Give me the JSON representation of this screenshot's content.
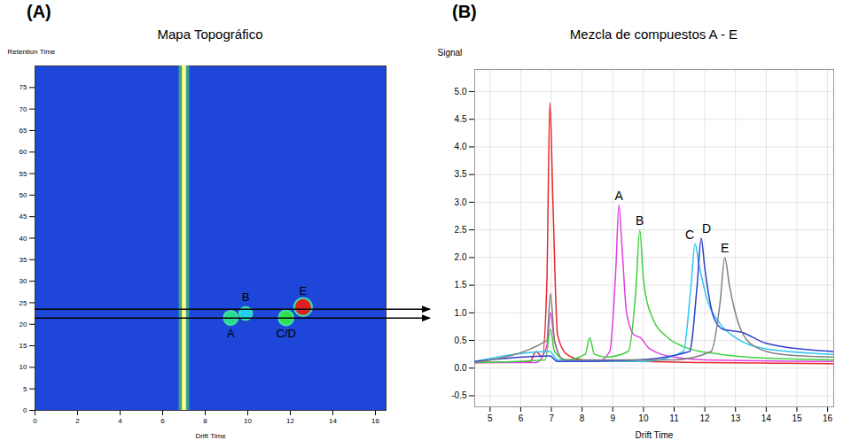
{
  "chart_data": [
    {
      "panel": "(A)",
      "type": "heatmap",
      "title": "Mapa Topográfico",
      "xlabel": "Drift Time",
      "ylabel": "Retention Time",
      "xlim": [
        0,
        16.5
      ],
      "xticks": [
        0,
        2,
        4,
        6,
        8,
        10,
        12,
        14,
        16
      ],
      "ylim": [
        0,
        80
      ],
      "yticks": [
        0,
        5,
        10,
        15,
        20,
        25,
        30,
        35,
        40,
        45,
        50,
        55,
        60,
        65,
        70,
        75
      ],
      "intensity_range": [
        0,
        1
      ],
      "reactant_ion_peak": {
        "x": 7,
        "intensity": 0.8
      },
      "spots": {
        "labels": [
          "A",
          "B",
          "C/D",
          "E"
        ],
        "x": [
          9.2,
          9.9,
          11.8,
          12.6
        ],
        "y": [
          21.5,
          22.5,
          21.5,
          24
        ],
        "intensity": [
          0.45,
          0.3,
          0.55,
          1.0
        ]
      }
    },
    {
      "panel": "(B)",
      "type": "line",
      "title": "Mezcla de compuestos A - E",
      "xlabel": "Drift Time",
      "ylabel": "Signal",
      "xlim": [
        4.5,
        16.2
      ],
      "xticks": [
        5,
        6,
        7,
        8,
        9,
        10,
        11,
        12,
        13,
        14,
        15,
        16
      ],
      "ylim": [
        -0.7,
        5.4
      ],
      "yticks": [
        -0.5,
        {
          "value": 0,
          "label": "0.0"
        },
        0.5,
        {
          "value": 1,
          "label": "1.0"
        },
        1.5,
        {
          "value": 2,
          "label": "2.0"
        },
        2.5,
        {
          "value": 3,
          "label": "3.0"
        },
        3.5,
        {
          "value": 4,
          "label": "4.0"
        },
        4.5,
        {
          "value": 5,
          "label": "5.0"
        }
      ],
      "grid": true,
      "series": [
        {
          "color": "#e8282b",
          "x": [
            4.5,
            6.3,
            6.5,
            6.7,
            6.85,
            6.95,
            7.05,
            7.2,
            7.5,
            8,
            10,
            12,
            16.2
          ],
          "values": [
            0.1,
            0.12,
            0.3,
            0.2,
            1.5,
            4.8,
            3.0,
            0.6,
            0.25,
            0.15,
            0.12,
            0.1,
            0.08
          ]
        },
        {
          "name": "A",
          "color": "#e040e0",
          "x": [
            4.5,
            6.5,
            6.85,
            6.97,
            7.1,
            7.4,
            8.5,
            8.9,
            9.1,
            9.2,
            9.3,
            9.45,
            9.7,
            9.9,
            10.2,
            11,
            12,
            16.2
          ],
          "values": [
            0.1,
            0.1,
            0.4,
            1.0,
            0.5,
            0.15,
            0.12,
            0.3,
            1.8,
            2.95,
            2.2,
            1.0,
            0.6,
            0.55,
            0.35,
            0.2,
            0.15,
            0.12
          ]
        },
        {
          "name": "B",
          "color": "#40d040",
          "x": [
            4.5,
            6.8,
            6.97,
            7.1,
            7.5,
            8.1,
            8.25,
            8.4,
            8.8,
            9.5,
            9.75,
            9.88,
            10.0,
            10.3,
            10.8,
            11.5,
            12.5,
            14,
            16.2
          ],
          "values": [
            0.1,
            0.15,
            0.7,
            0.3,
            0.15,
            0.25,
            0.55,
            0.25,
            0.2,
            0.3,
            1.4,
            2.5,
            1.6,
            0.9,
            0.55,
            0.35,
            0.25,
            0.18,
            0.15
          ]
        },
        {
          "name": "C",
          "color": "#30c8f0",
          "x": [
            4.5,
            6.95,
            7.2,
            10,
            11.3,
            11.55,
            11.68,
            11.8,
            12.1,
            12.5,
            13,
            14,
            16.2
          ],
          "values": [
            0.12,
            0.3,
            0.15,
            0.12,
            0.3,
            1.5,
            2.25,
            1.9,
            1.2,
            0.8,
            0.55,
            0.35,
            0.25
          ]
        },
        {
          "name": "D",
          "color": "#3040d0",
          "x": [
            4.5,
            6.95,
            7.2,
            9.8,
            11.5,
            11.75,
            11.88,
            12.0,
            12.3,
            12.6,
            13.2,
            14,
            16.2
          ],
          "values": [
            0.12,
            0.22,
            0.12,
            0.15,
            0.3,
            1.5,
            2.35,
            1.8,
            0.9,
            0.7,
            0.65,
            0.45,
            0.3
          ]
        },
        {
          "name": "E",
          "color": "#808080",
          "x": [
            4.5,
            6.85,
            6.97,
            7.1,
            7.4,
            11,
            12.2,
            12.5,
            12.65,
            12.8,
            13.1,
            13.6,
            14.5,
            16.2
          ],
          "values": [
            0.1,
            0.5,
            1.35,
            0.5,
            0.15,
            0.15,
            0.3,
            1.2,
            2.0,
            1.5,
            0.8,
            0.4,
            0.25,
            0.2
          ]
        }
      ]
    }
  ]
}
